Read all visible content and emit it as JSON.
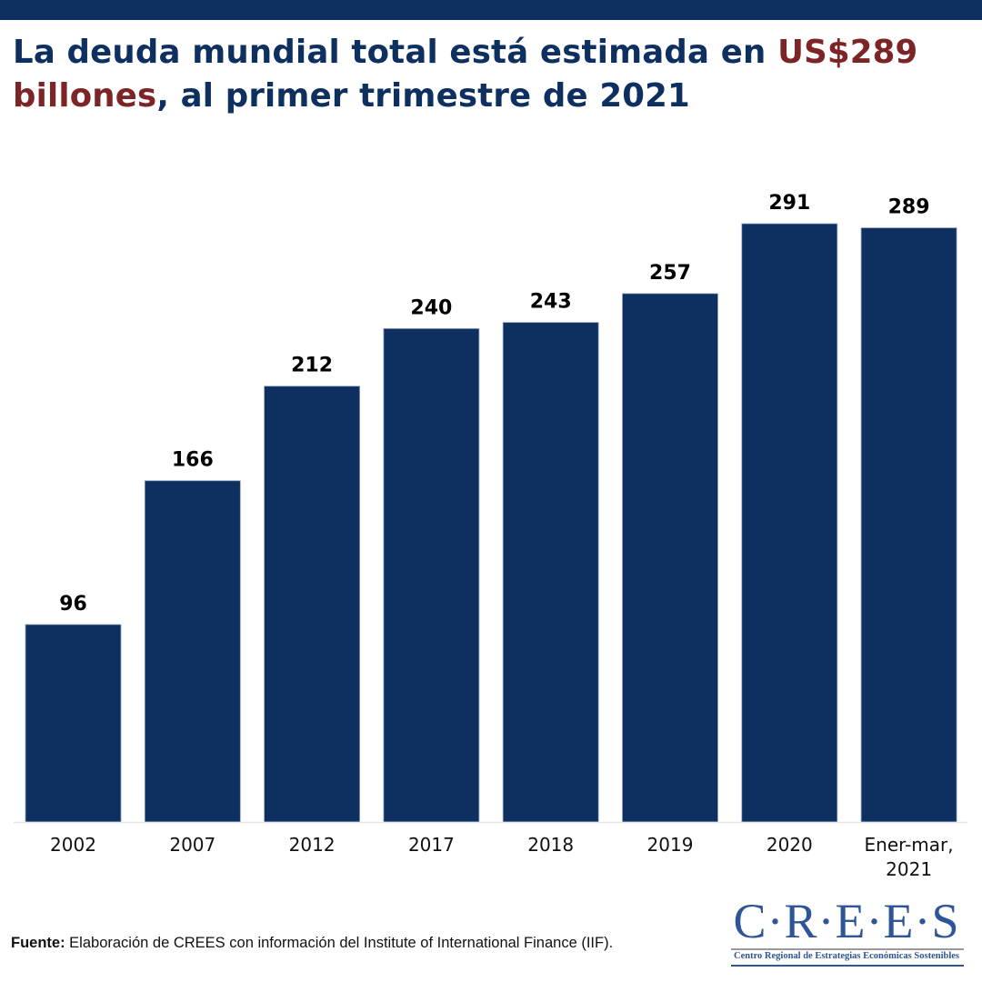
{
  "header": {
    "title_part1": "La deuda mundial total está estimada en ",
    "title_highlight1": "US$289",
    "title_highlight2": "billones",
    "title_part2": ", al primer trimestre de 2021"
  },
  "colors": {
    "bar": "#0e3060",
    "bar_edge": "#8fa3bf",
    "title": "#0e3060",
    "highlight": "#7d2427",
    "axis_line": "#e3e3e3",
    "logo": "#2e5597"
  },
  "chart_data": {
    "type": "bar",
    "title": "La deuda mundial total está estimada en US$289 billones, al primer trimestre de 2021",
    "xlabel": "",
    "ylabel": "",
    "categories": [
      "2002",
      "2007",
      "2012",
      "2017",
      "2018",
      "2019",
      "2020",
      "Ener-mar, 2021"
    ],
    "category_lines": [
      [
        "2002"
      ],
      [
        "2007"
      ],
      [
        "2012"
      ],
      [
        "2017"
      ],
      [
        "2018"
      ],
      [
        "2019"
      ],
      [
        "2020"
      ],
      [
        "Ener-mar,",
        "2021"
      ]
    ],
    "values": [
      96,
      166,
      212,
      240,
      243,
      257,
      291,
      289
    ],
    "data_labels": [
      "96",
      "166",
      "212",
      "240",
      "243",
      "257",
      "291",
      "289"
    ],
    "ylim": [
      0,
      300
    ],
    "grid": false,
    "legend": "none",
    "unit": "billones de US$"
  },
  "footer": {
    "source_label": "Fuente:",
    "source_text": " Elaboración de CREES con información del Institute of International Finance (IIF)."
  },
  "logo": {
    "main": "C·R·E·E·S",
    "subtitle": "Centro Regional de Estrategias Económicas Sostenibles"
  }
}
